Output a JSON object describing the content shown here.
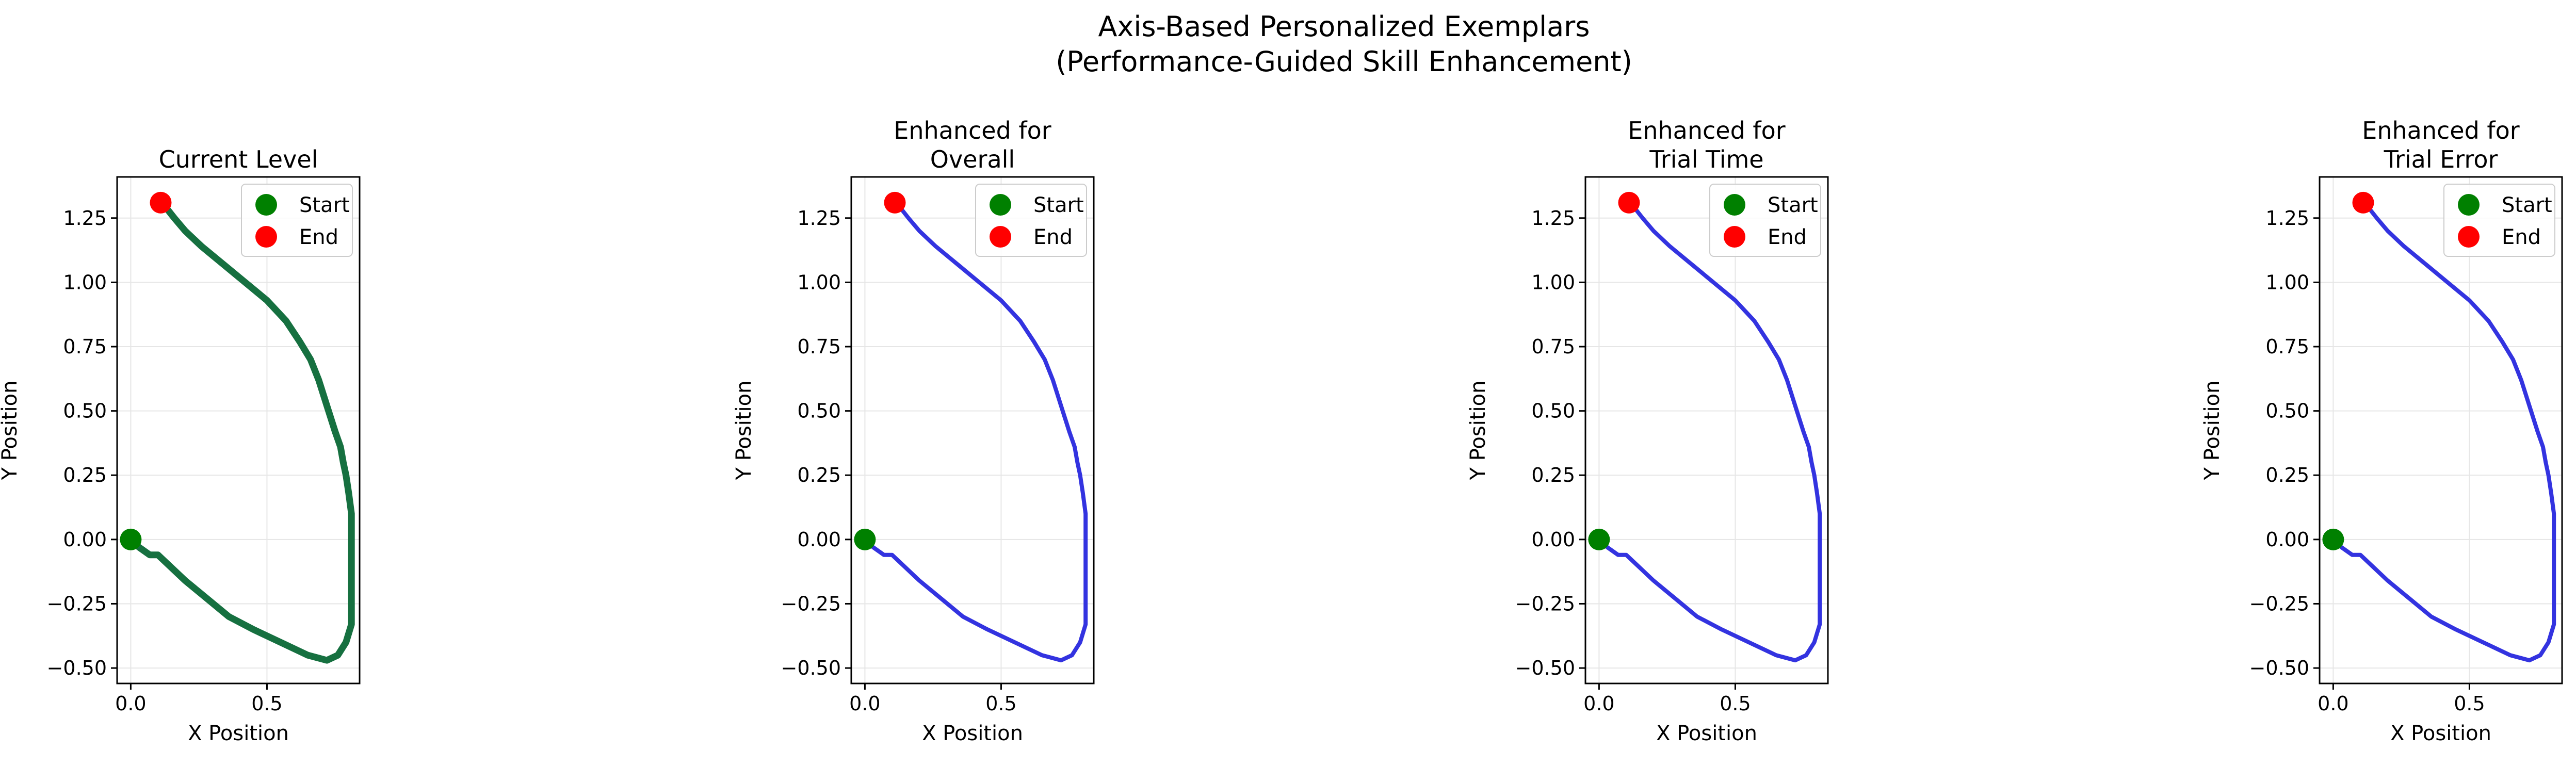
{
  "suptitle": [
    "Axis-Based Personalized Exemplars",
    "(Performance-Guided Skill Enhancement)"
  ],
  "chart_data": [
    {
      "type": "line",
      "title": [
        "Current Level"
      ],
      "xlabel": "X Position",
      "ylabel": "Y Position",
      "xlim": [
        -0.05,
        0.84
      ],
      "ylim": [
        -0.56,
        1.41
      ],
      "xticks": [
        0.0,
        0.5
      ],
      "xtick_labels": [
        "0.0",
        "0.5"
      ],
      "yticks": [
        -0.5,
        -0.25,
        0.0,
        0.25,
        0.5,
        0.75,
        1.0,
        1.25
      ],
      "ytick_labels": [
        "−0.50",
        "−0.25",
        "0.00",
        "0.25",
        "0.50",
        "0.75",
        "1.00",
        "1.25"
      ],
      "grid": true,
      "legend": {
        "placement": "upper right",
        "entries": [
          {
            "label": "Start",
            "color": "#008000"
          },
          {
            "label": "End",
            "color": "#ff0000"
          }
        ]
      },
      "series": [
        {
          "name": "",
          "color": "#167040",
          "linewidth": 13,
          "x": [
            0.0,
            0.03,
            0.07,
            0.1,
            0.14,
            0.2,
            0.28,
            0.36,
            0.45,
            0.55,
            0.65,
            0.72,
            0.76,
            0.79,
            0.81,
            0.81,
            0.81,
            0.8,
            0.79,
            0.78,
            0.77,
            0.75,
            0.72,
            0.69,
            0.66,
            0.62,
            0.57,
            0.5,
            0.42,
            0.34,
            0.26,
            0.2,
            0.16,
            0.13,
            0.11
          ],
          "y": [
            0.0,
            -0.03,
            -0.06,
            -0.06,
            -0.1,
            -0.16,
            -0.23,
            -0.3,
            -0.35,
            -0.4,
            -0.45,
            -0.47,
            -0.45,
            -0.4,
            -0.33,
            -0.2,
            0.1,
            0.18,
            0.25,
            0.3,
            0.36,
            0.42,
            0.52,
            0.62,
            0.7,
            0.77,
            0.85,
            0.93,
            1.0,
            1.07,
            1.14,
            1.2,
            1.25,
            1.29,
            1.31
          ]
        },
        {
          "name": "Start",
          "type": "scatter",
          "color": "#008000",
          "x": [
            0.0
          ],
          "y": [
            0.0
          ]
        },
        {
          "name": "End",
          "type": "scatter",
          "color": "#ff0000",
          "x": [
            0.11
          ],
          "y": [
            1.31
          ]
        }
      ]
    },
    {
      "type": "line",
      "title": [
        "Enhanced for",
        "Overall"
      ],
      "xlabel": "X Position",
      "ylabel": "Y Position",
      "xlim": [
        -0.05,
        0.84
      ],
      "ylim": [
        -0.56,
        1.41
      ],
      "xticks": [
        0.0,
        0.5
      ],
      "xtick_labels": [
        "0.0",
        "0.5"
      ],
      "yticks": [
        -0.5,
        -0.25,
        0.0,
        0.25,
        0.5,
        0.75,
        1.0,
        1.25
      ],
      "ytick_labels": [
        "−0.50",
        "−0.25",
        "0.00",
        "0.25",
        "0.50",
        "0.75",
        "1.00",
        "1.25"
      ],
      "grid": true,
      "legend": {
        "placement": "upper right",
        "entries": [
          {
            "label": "Start",
            "color": "#008000"
          },
          {
            "label": "End",
            "color": "#ff0000"
          }
        ]
      },
      "series": [
        {
          "name": "",
          "color": "#3333e0",
          "linewidth": 8,
          "x": [
            0.0,
            0.03,
            0.07,
            0.1,
            0.14,
            0.2,
            0.28,
            0.36,
            0.45,
            0.55,
            0.65,
            0.72,
            0.76,
            0.79,
            0.81,
            0.81,
            0.81,
            0.8,
            0.79,
            0.78,
            0.77,
            0.75,
            0.72,
            0.69,
            0.66,
            0.62,
            0.57,
            0.5,
            0.42,
            0.34,
            0.26,
            0.2,
            0.16,
            0.13,
            0.11
          ],
          "y": [
            0.0,
            -0.03,
            -0.06,
            -0.06,
            -0.1,
            -0.16,
            -0.23,
            -0.3,
            -0.35,
            -0.4,
            -0.45,
            -0.47,
            -0.45,
            -0.4,
            -0.33,
            -0.2,
            0.1,
            0.18,
            0.25,
            0.3,
            0.36,
            0.42,
            0.52,
            0.62,
            0.7,
            0.77,
            0.85,
            0.93,
            1.0,
            1.07,
            1.14,
            1.2,
            1.25,
            1.29,
            1.31
          ]
        },
        {
          "name": "Start",
          "type": "scatter",
          "color": "#008000",
          "x": [
            0.0
          ],
          "y": [
            0.0
          ]
        },
        {
          "name": "End",
          "type": "scatter",
          "color": "#ff0000",
          "x": [
            0.11
          ],
          "y": [
            1.31
          ]
        }
      ]
    },
    {
      "type": "line",
      "title": [
        "Enhanced for",
        "Trial Time"
      ],
      "xlabel": "X Position",
      "ylabel": "Y Position",
      "xlim": [
        -0.05,
        0.84
      ],
      "ylim": [
        -0.56,
        1.41
      ],
      "xticks": [
        0.0,
        0.5
      ],
      "xtick_labels": [
        "0.0",
        "0.5"
      ],
      "yticks": [
        -0.5,
        -0.25,
        0.0,
        0.25,
        0.5,
        0.75,
        1.0,
        1.25
      ],
      "ytick_labels": [
        "−0.50",
        "−0.25",
        "0.00",
        "0.25",
        "0.50",
        "0.75",
        "1.00",
        "1.25"
      ],
      "grid": true,
      "legend": {
        "placement": "upper right",
        "entries": [
          {
            "label": "Start",
            "color": "#008000"
          },
          {
            "label": "End",
            "color": "#ff0000"
          }
        ]
      },
      "series": [
        {
          "name": "",
          "color": "#3333e0",
          "linewidth": 8,
          "x": [
            0.0,
            0.03,
            0.07,
            0.1,
            0.14,
            0.2,
            0.28,
            0.36,
            0.45,
            0.55,
            0.65,
            0.72,
            0.76,
            0.79,
            0.81,
            0.81,
            0.81,
            0.8,
            0.79,
            0.78,
            0.77,
            0.75,
            0.72,
            0.69,
            0.66,
            0.62,
            0.57,
            0.5,
            0.42,
            0.34,
            0.26,
            0.2,
            0.16,
            0.13,
            0.11
          ],
          "y": [
            0.0,
            -0.03,
            -0.06,
            -0.06,
            -0.1,
            -0.16,
            -0.23,
            -0.3,
            -0.35,
            -0.4,
            -0.45,
            -0.47,
            -0.45,
            -0.4,
            -0.33,
            -0.2,
            0.1,
            0.18,
            0.25,
            0.3,
            0.36,
            0.42,
            0.52,
            0.62,
            0.7,
            0.77,
            0.85,
            0.93,
            1.0,
            1.07,
            1.14,
            1.2,
            1.25,
            1.29,
            1.31
          ]
        },
        {
          "name": "Start",
          "type": "scatter",
          "color": "#008000",
          "x": [
            0.0
          ],
          "y": [
            0.0
          ]
        },
        {
          "name": "End",
          "type": "scatter",
          "color": "#ff0000",
          "x": [
            0.11
          ],
          "y": [
            1.31
          ]
        }
      ]
    },
    {
      "type": "line",
      "title": [
        "Enhanced for",
        "Trial Error"
      ],
      "xlabel": "X Position",
      "ylabel": "Y Position",
      "xlim": [
        -0.05,
        0.84
      ],
      "ylim": [
        -0.56,
        1.41
      ],
      "xticks": [
        0.0,
        0.5
      ],
      "xtick_labels": [
        "0.0",
        "0.5"
      ],
      "yticks": [
        -0.5,
        -0.25,
        0.0,
        0.25,
        0.5,
        0.75,
        1.0,
        1.25
      ],
      "ytick_labels": [
        "−0.50",
        "−0.25",
        "0.00",
        "0.25",
        "0.50",
        "0.75",
        "1.00",
        "1.25"
      ],
      "grid": true,
      "legend": {
        "placement": "upper right",
        "entries": [
          {
            "label": "Start",
            "color": "#008000"
          },
          {
            "label": "End",
            "color": "#ff0000"
          }
        ]
      },
      "series": [
        {
          "name": "",
          "color": "#3333e0",
          "linewidth": 8,
          "x": [
            0.0,
            0.03,
            0.07,
            0.1,
            0.14,
            0.2,
            0.28,
            0.36,
            0.45,
            0.55,
            0.65,
            0.72,
            0.76,
            0.79,
            0.81,
            0.81,
            0.81,
            0.8,
            0.79,
            0.78,
            0.77,
            0.75,
            0.72,
            0.69,
            0.66,
            0.62,
            0.57,
            0.5,
            0.42,
            0.34,
            0.26,
            0.2,
            0.16,
            0.13,
            0.11
          ],
          "y": [
            0.0,
            -0.03,
            -0.06,
            -0.06,
            -0.1,
            -0.16,
            -0.23,
            -0.3,
            -0.35,
            -0.4,
            -0.45,
            -0.47,
            -0.45,
            -0.4,
            -0.33,
            -0.2,
            0.1,
            0.18,
            0.25,
            0.3,
            0.36,
            0.42,
            0.52,
            0.62,
            0.7,
            0.77,
            0.85,
            0.93,
            1.0,
            1.07,
            1.14,
            1.2,
            1.25,
            1.29,
            1.31
          ]
        },
        {
          "name": "Start",
          "type": "scatter",
          "color": "#008000",
          "x": [
            0.0
          ],
          "y": [
            0.0
          ]
        },
        {
          "name": "End",
          "type": "scatter",
          "color": "#ff0000",
          "x": [
            0.11
          ],
          "y": [
            1.31
          ]
        }
      ]
    }
  ]
}
